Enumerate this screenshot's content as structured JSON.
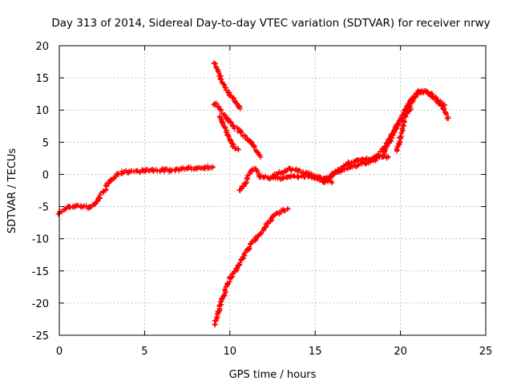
{
  "chart_data": {
    "type": "scatter",
    "title": "Day 313 of 2014, Sidereal Day-to-day VTEC variation (SDTVAR) for receiver nrwy",
    "xlabel": "GPS time / hours",
    "ylabel": "SDTVAR / TECUs",
    "xlim": [
      0,
      25
    ],
    "ylim": [
      -25,
      20
    ],
    "xticks": [
      0,
      5,
      10,
      15,
      20,
      25
    ],
    "yticks": [
      -25,
      -20,
      -15,
      -10,
      -5,
      0,
      5,
      10,
      15,
      20
    ],
    "grid": true,
    "marker": "+",
    "color": "#ff0000",
    "series": [
      {
        "name": "track-1",
        "x": [
          0.0,
          0.3,
          0.6,
          1.0,
          1.4,
          1.8,
          2.2,
          2.6,
          3.0,
          3.4,
          3.8,
          4.2,
          4.6,
          5.0,
          5.5,
          6.0,
          6.5,
          7.0,
          7.5,
          8.0,
          8.5,
          9.0
        ],
        "y": [
          -6.0,
          -5.4,
          -5.0,
          -4.9,
          -5.0,
          -5.2,
          -4.2,
          -2.6,
          -0.9,
          0.0,
          0.4,
          0.5,
          0.5,
          0.6,
          0.6,
          0.7,
          0.6,
          0.8,
          0.9,
          1.0,
          1.1,
          1.2
        ]
      },
      {
        "name": "track-2",
        "x": [
          9.1,
          9.4,
          9.7,
          10.0,
          10.3,
          10.6
        ],
        "y": [
          17.2,
          15.3,
          13.5,
          12.4,
          11.2,
          10.2
        ]
      },
      {
        "name": "track-3",
        "x": [
          9.1,
          9.4,
          9.8,
          10.2,
          10.6,
          11.0,
          11.4,
          11.8
        ],
        "y": [
          11.0,
          10.2,
          8.8,
          7.5,
          6.6,
          5.6,
          4.4,
          2.7
        ]
      },
      {
        "name": "track-4",
        "x": [
          9.4,
          9.6,
          9.8,
          10.0,
          10.2,
          10.5
        ],
        "y": [
          9.0,
          7.8,
          6.8,
          5.4,
          4.3,
          3.8
        ]
      },
      {
        "name": "track-5",
        "x": [
          9.1,
          9.3,
          9.6,
          10.0,
          10.5,
          11.0,
          11.5,
          12.0,
          12.5,
          13.0,
          13.4
        ],
        "y": [
          -23.3,
          -21.5,
          -19.0,
          -16.2,
          -14.2,
          -11.8,
          -10.0,
          -8.4,
          -6.6,
          -5.8,
          -5.3
        ]
      },
      {
        "name": "track-6",
        "x": [
          10.6,
          10.9,
          11.2,
          11.5,
          11.8,
          12.2,
          12.8,
          13.4,
          14.0,
          14.6,
          15.2,
          15.6,
          16.0
        ],
        "y": [
          -2.5,
          -1.5,
          0.5,
          0.9,
          -0.4,
          -0.5,
          -0.6,
          -0.4,
          -0.3,
          -0.4,
          -0.5,
          -0.8,
          -1.3
        ]
      },
      {
        "name": "track-7",
        "x": [
          12.5,
          13.0,
          13.5,
          14.0,
          14.5,
          15.0,
          15.5,
          16.0,
          16.5,
          17.0,
          17.5,
          18.0,
          18.5,
          19.0,
          19.3
        ],
        "y": [
          -0.2,
          0.3,
          0.9,
          0.6,
          0.2,
          -0.3,
          -1.2,
          -0.2,
          1.0,
          1.8,
          2.2,
          2.4,
          2.6,
          2.7,
          2.7
        ]
      },
      {
        "name": "track-8",
        "x": [
          15.5,
          16.0,
          16.5,
          17.0,
          17.5,
          18.0,
          18.5,
          19.0,
          19.5,
          20.0,
          20.5,
          21.0,
          21.5,
          22.0,
          22.5,
          22.8
        ],
        "y": [
          -1.0,
          0.1,
          0.6,
          1.0,
          1.5,
          1.8,
          2.3,
          4.0,
          6.2,
          8.4,
          10.8,
          12.8,
          12.9,
          11.8,
          10.5,
          8.7
        ]
      },
      {
        "name": "track-9",
        "x": [
          19.0,
          19.4,
          19.8,
          20.2,
          20.6,
          21.0,
          21.4,
          21.8,
          22.2,
          22.6
        ],
        "y": [
          3.5,
          5.2,
          7.6,
          9.6,
          11.4,
          12.6,
          13.0,
          12.5,
          11.5,
          10.8
        ]
      },
      {
        "name": "track-10",
        "x": [
          19.8,
          20.0,
          20.2,
          20.4,
          20.6
        ],
        "y": [
          3.8,
          5.9,
          8.2,
          9.7,
          10.4
        ]
      }
    ]
  }
}
